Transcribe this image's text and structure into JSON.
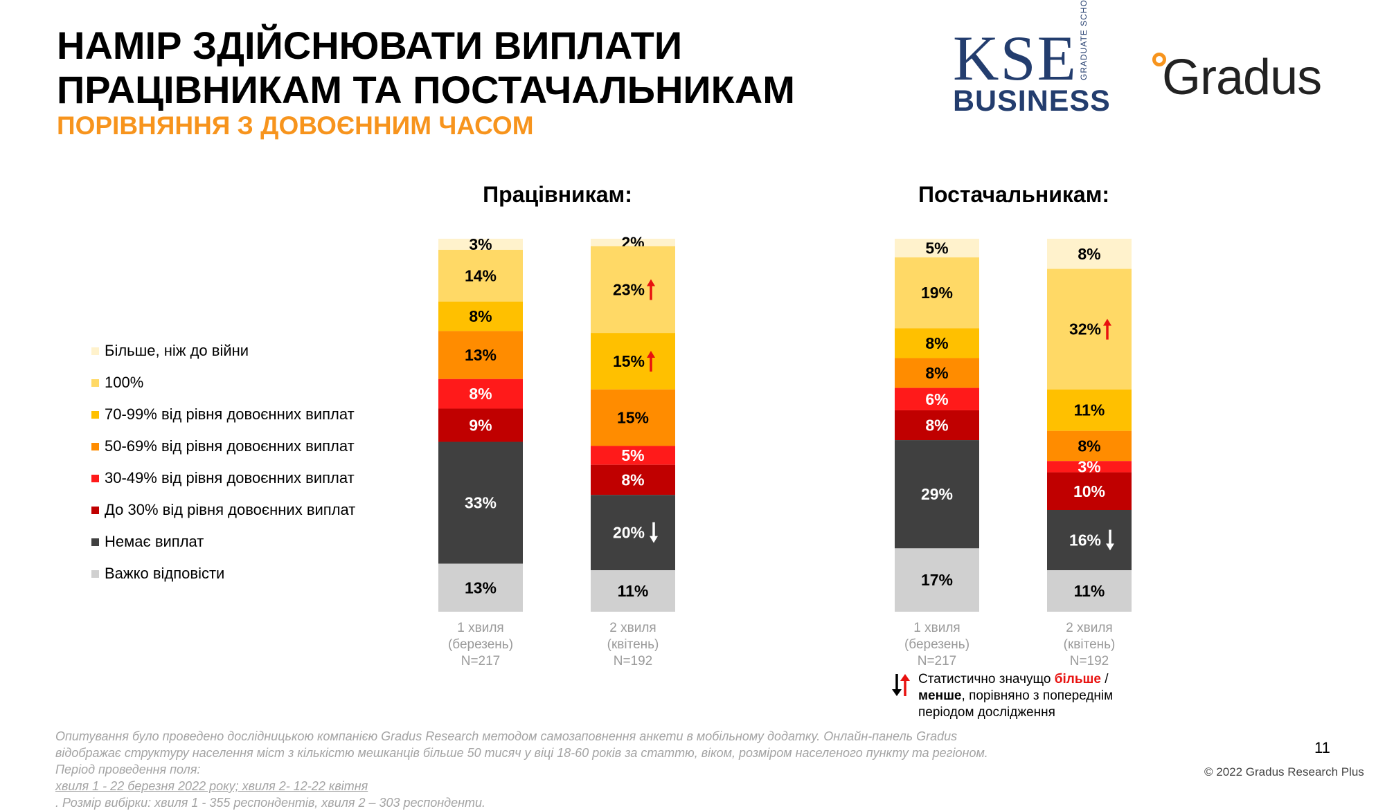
{
  "header": {
    "title_lines": [
      "НАМІР ЗДІЙСНЮВАТИ ВИПЛАТИ",
      "ПРАЦІВНИКАМ ТА ПОСТАЧАЛЬНИКАМ"
    ],
    "subtitle": "ПОРІВНЯННЯ З ДОВОЄННИМ ЧАСОМ"
  },
  "logos": {
    "kse": {
      "word": "KSE",
      "vertical_lines": [
        "GRADUATE",
        "SCHOOL"
      ],
      "business": "BUSINESS"
    },
    "gradus": {
      "word": "Gradus"
    }
  },
  "legend": {
    "items": [
      {
        "label": "Більше, ніж до війни",
        "color": "#fff2cc"
      },
      {
        "label": "100%",
        "color": "#ffd966"
      },
      {
        "label": "70-99% від рівня довоєнних виплат",
        "color": "#ffc000"
      },
      {
        "label": "50-69% від рівня довоєнних виплат",
        "color": "#ff8c00"
      },
      {
        "label": "30-49% від рівня довоєнних виплат",
        "color": "#ff1a1a"
      },
      {
        "label": "До 30% від рівня довоєнних виплат",
        "color": "#c00000"
      },
      {
        "label": "Немає виплат",
        "color": "#404040"
      },
      {
        "label": "Важко відповісти",
        "color": "#d0d0d0"
      }
    ]
  },
  "chart_data": [
    {
      "type": "bar",
      "stacked": "100%",
      "title": "Працівникам:",
      "categories": [
        {
          "lines": [
            "1 хвиля",
            "(березень)",
            "N=217"
          ]
        },
        {
          "lines": [
            "2 хвиля",
            "(квітень)",
            "N=192"
          ]
        }
      ],
      "series": [
        {
          "name": "Більше, ніж до війни",
          "values": [
            3,
            2
          ],
          "labels": [
            "3%",
            "2%"
          ],
          "sig": [
            null,
            null
          ]
        },
        {
          "name": "100%",
          "values": [
            14,
            23
          ],
          "labels": [
            "14%",
            "23%"
          ],
          "sig": [
            null,
            "up"
          ]
        },
        {
          "name": "70-99% від рівня довоєнних виплат",
          "values": [
            8,
            15
          ],
          "labels": [
            "8%",
            "15%"
          ],
          "sig": [
            null,
            "up"
          ]
        },
        {
          "name": "50-69% від рівня довоєнних виплат",
          "values": [
            13,
            15
          ],
          "labels": [
            "13%",
            "15%"
          ],
          "sig": [
            null,
            null
          ]
        },
        {
          "name": "30-49% від рівня довоєнних виплат",
          "values": [
            8,
            5
          ],
          "labels": [
            "8%",
            "5%"
          ],
          "sig": [
            null,
            null
          ]
        },
        {
          "name": "До 30% від рівня довоєнних виплат",
          "values": [
            9,
            8
          ],
          "labels": [
            "9%",
            "8%"
          ],
          "sig": [
            null,
            null
          ]
        },
        {
          "name": "Немає виплат",
          "values": [
            33,
            20
          ],
          "labels": [
            "33%",
            "20%"
          ],
          "sig": [
            null,
            "down"
          ]
        },
        {
          "name": "Важко відповісти",
          "values": [
            13,
            11
          ],
          "labels": [
            "13%",
            "11%"
          ],
          "sig": [
            null,
            null
          ]
        }
      ]
    },
    {
      "type": "bar",
      "stacked": "100%",
      "title": "Постачальникам:",
      "categories": [
        {
          "lines": [
            "1 хвиля",
            "(березень)",
            "N=217"
          ]
        },
        {
          "lines": [
            "2 хвиля",
            "(квітень)",
            "N=192"
          ]
        }
      ],
      "series": [
        {
          "name": "Більше, ніж до війни",
          "values": [
            5,
            8
          ],
          "labels": [
            "5%",
            "8%"
          ],
          "sig": [
            null,
            null
          ]
        },
        {
          "name": "100%",
          "values": [
            19,
            32
          ],
          "labels": [
            "19%",
            "32%"
          ],
          "sig": [
            null,
            "up"
          ]
        },
        {
          "name": "70-99% від рівня довоєнних виплат",
          "values": [
            8,
            11
          ],
          "labels": [
            "8%",
            "11%"
          ],
          "sig": [
            null,
            null
          ]
        },
        {
          "name": "50-69% від рівня довоєнних виплат",
          "values": [
            8,
            8
          ],
          "labels": [
            "8%",
            "8%"
          ],
          "sig": [
            null,
            null
          ]
        },
        {
          "name": "30-49% від рівня довоєнних виплат",
          "values": [
            6,
            3
          ],
          "labels": [
            "6%",
            "3%"
          ],
          "sig": [
            null,
            null
          ]
        },
        {
          "name": "До 30% від рівня довоєнних виплат",
          "values": [
            8,
            10
          ],
          "labels": [
            "8%",
            "10%"
          ],
          "sig": [
            null,
            null
          ]
        },
        {
          "name": "Немає виплат",
          "values": [
            29,
            16
          ],
          "labels": [
            "29%",
            "16%"
          ],
          "sig": [
            null,
            "down"
          ]
        },
        {
          "name": "Важко відповісти",
          "values": [
            17,
            11
          ],
          "labels": [
            "17%",
            "11%"
          ],
          "sig": [
            null,
            null
          ]
        }
      ]
    }
  ],
  "significance_note": {
    "prefix": "Статистично значущо ",
    "more": "більше",
    "sep": " /",
    "less": "менше",
    "suffix": ", порівняно з попереднім періодом дослідження"
  },
  "footnote": {
    "line1": "Опитування було проведено дослідницькою компанією Gradus Research методом самозаповнення анкети в мобільному додатку. Онлайн-панель Gradus",
    "line2": "відображає структуру населення міст з кількістю мешканців більше 50 тисяч у віці 18-60 років за статтю, віком, розміром населеного пункту та регіоном.",
    "line3_prefix": "Період проведення поля: ",
    "line3_underlined": "хвиля 1 - 22 березня 2022 року; хвиля 2- 12-22 квітня",
    "line3_suffix": ". Розмір вибірки: хвиля 1 - 355 респондентів, хвиля 2 – 303 респонденти."
  },
  "page_number": "11",
  "copyright": "© 2022 Gradus Research Plus",
  "colors": {
    "accent_orange": "#f7941d",
    "kse_navy": "#233d6e",
    "sig_up": "#e8110f",
    "sig_down_on_dark": "#ffffff",
    "sig_down_legend": "#000000",
    "label_dark": "#000000",
    "label_light": "#ffffff",
    "category_label": "#9a9a9a"
  }
}
